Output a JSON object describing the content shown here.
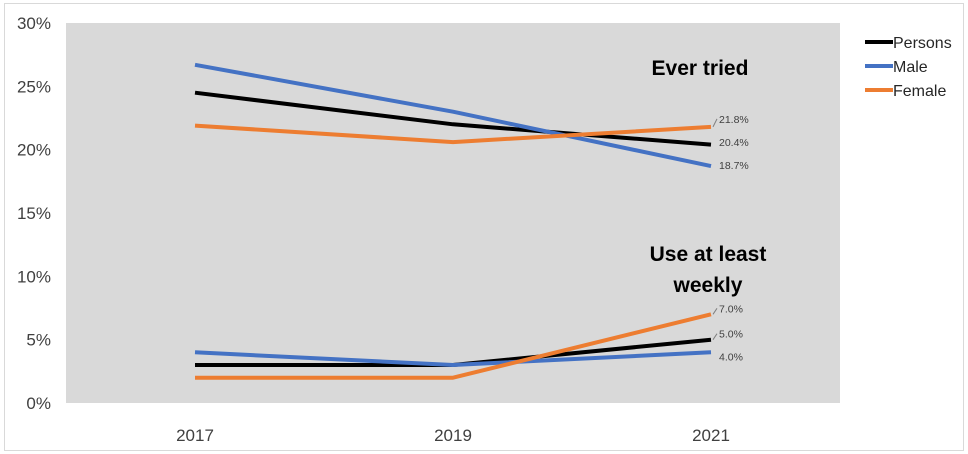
{
  "chart_data": {
    "type": "line",
    "title": "",
    "xlabel": "",
    "ylabel": "",
    "x": [
      "2017",
      "2019",
      "2021"
    ],
    "ylim": [
      0,
      0.3
    ],
    "y_ticks": [
      "0%",
      "5%",
      "10%",
      "15%",
      "20%",
      "25%",
      "30%"
    ],
    "grid": false,
    "legend_position": "right",
    "legend": [
      "Persons",
      "Male",
      "Female"
    ],
    "groups": [
      {
        "label": "Ever tried",
        "series": [
          {
            "name": "Persons",
            "color": "#000000",
            "values": [
              0.245,
              0.22,
              0.204
            ]
          },
          {
            "name": "Male",
            "color": "#4472c4",
            "values": [
              0.267,
              0.23,
              0.187
            ]
          },
          {
            "name": "Female",
            "color": "#ed7d31",
            "values": [
              0.219,
              0.206,
              0.218
            ]
          }
        ],
        "data_labels": [
          {
            "series": "Female",
            "text": "21.8%"
          },
          {
            "series": "Persons",
            "text": "20.4%"
          },
          {
            "series": "Male",
            "text": "18.7%"
          }
        ]
      },
      {
        "label": "Use at least weekly",
        "label_lines": [
          "Use at least",
          "weekly"
        ],
        "series": [
          {
            "name": "Persons",
            "color": "#000000",
            "values": [
              0.03,
              0.03,
              0.05
            ]
          },
          {
            "name": "Male",
            "color": "#4472c4",
            "values": [
              0.04,
              0.03,
              0.04
            ]
          },
          {
            "name": "Female",
            "color": "#ed7d31",
            "values": [
              0.02,
              0.02,
              0.07
            ]
          }
        ],
        "data_labels": [
          {
            "series": "Female",
            "text": "7.0%"
          },
          {
            "series": "Persons",
            "text": "5.0%"
          },
          {
            "series": "Male",
            "text": "4.0%"
          }
        ]
      }
    ],
    "colors": {
      "plot_background": "#d9d9d9",
      "persons": "#000000",
      "male": "#4472c4",
      "female": "#ed7d31"
    }
  }
}
